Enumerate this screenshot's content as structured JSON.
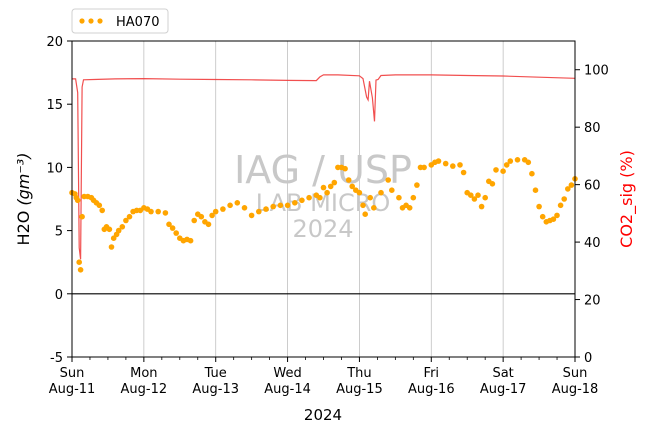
{
  "chart_data": {
    "type": "line",
    "ylabel_left": "H2O",
    "ylabel_left_unit": "(gm⁻³)",
    "ylabel_right": "CO2_sig (%)",
    "xlabel": "2024",
    "ylim_left": [
      -5,
      20
    ],
    "ylim_right": [
      0,
      110
    ],
    "yticks_left": [
      -5,
      0,
      5,
      10,
      15,
      20
    ],
    "yticks_right": [
      0,
      20,
      40,
      60,
      80,
      100
    ],
    "x_range_days": [
      0,
      7
    ],
    "x_ticks": [
      {
        "day": 0,
        "l1": "Sun",
        "l2": "Aug-11"
      },
      {
        "day": 1,
        "l1": "Mon",
        "l2": "Aug-12"
      },
      {
        "day": 2,
        "l1": "Tue",
        "l2": "Aug-13"
      },
      {
        "day": 3,
        "l1": "Wed",
        "l2": "Aug-14"
      },
      {
        "day": 4,
        "l1": "Thu",
        "l2": "Aug-15"
      },
      {
        "day": 5,
        "l1": "Fri",
        "l2": "Aug-16"
      },
      {
        "day": 6,
        "l1": "Sat",
        "l2": "Aug-17"
      },
      {
        "day": 7,
        "l1": "Sun",
        "l2": "Aug-18"
      }
    ],
    "grid_x": true,
    "zero_line": true,
    "legend": {
      "label": "HA070",
      "placement": "top-left-outside"
    },
    "watermark": [
      "IAG / USP",
      "LAB MICRO",
      "2024"
    ],
    "colors": {
      "h2o": "#ffa500",
      "co2": "#f03c3c",
      "grid": "#c0c0c0",
      "watermark": "#c8c8c8",
      "right_label": "#ff0000"
    },
    "series": [
      {
        "name": "HA070",
        "axis": "left",
        "style": "points",
        "points": [
          [
            0.0,
            8.0
          ],
          [
            0.04,
            7.9
          ],
          [
            0.06,
            7.6
          ],
          [
            0.08,
            7.4
          ],
          [
            0.1,
            2.5
          ],
          [
            0.12,
            1.9
          ],
          [
            0.14,
            6.1
          ],
          [
            0.17,
            7.7
          ],
          [
            0.22,
            7.7
          ],
          [
            0.27,
            7.6
          ],
          [
            0.3,
            7.4
          ],
          [
            0.34,
            7.2
          ],
          [
            0.38,
            7.0
          ],
          [
            0.42,
            6.6
          ],
          [
            0.45,
            5.1
          ],
          [
            0.48,
            5.3
          ],
          [
            0.52,
            5.1
          ],
          [
            0.55,
            3.7
          ],
          [
            0.58,
            4.4
          ],
          [
            0.62,
            4.7
          ],
          [
            0.65,
            5.0
          ],
          [
            0.7,
            5.3
          ],
          [
            0.75,
            5.8
          ],
          [
            0.8,
            6.1
          ],
          [
            0.85,
            6.5
          ],
          [
            0.9,
            6.6
          ],
          [
            0.95,
            6.6
          ],
          [
            1.0,
            6.8
          ],
          [
            1.05,
            6.7
          ],
          [
            1.1,
            6.5
          ],
          [
            1.2,
            6.5
          ],
          [
            1.3,
            6.4
          ],
          [
            1.35,
            5.5
          ],
          [
            1.4,
            5.2
          ],
          [
            1.45,
            4.8
          ],
          [
            1.5,
            4.4
          ],
          [
            1.55,
            4.2
          ],
          [
            1.6,
            4.3
          ],
          [
            1.65,
            4.2
          ],
          [
            1.7,
            5.8
          ],
          [
            1.75,
            6.3
          ],
          [
            1.8,
            6.1
          ],
          [
            1.85,
            5.7
          ],
          [
            1.9,
            5.5
          ],
          [
            1.95,
            6.2
          ],
          [
            2.0,
            6.5
          ],
          [
            2.1,
            6.7
          ],
          [
            2.2,
            7.0
          ],
          [
            2.3,
            7.2
          ],
          [
            2.4,
            6.8
          ],
          [
            2.5,
            6.2
          ],
          [
            2.6,
            6.5
          ],
          [
            2.7,
            6.7
          ],
          [
            2.8,
            6.9
          ],
          [
            2.9,
            7.0
          ],
          [
            3.0,
            7.0
          ],
          [
            3.1,
            7.2
          ],
          [
            3.2,
            7.4
          ],
          [
            3.3,
            7.6
          ],
          [
            3.4,
            7.8
          ],
          [
            3.45,
            7.6
          ],
          [
            3.5,
            8.4
          ],
          [
            3.55,
            8.0
          ],
          [
            3.6,
            8.5
          ],
          [
            3.65,
            8.8
          ],
          [
            3.7,
            10.0
          ],
          [
            3.75,
            10.0
          ],
          [
            3.8,
            9.9
          ],
          [
            3.85,
            9.0
          ],
          [
            3.9,
            8.5
          ],
          [
            3.95,
            8.2
          ],
          [
            4.0,
            8.0
          ],
          [
            4.05,
            7.0
          ],
          [
            4.08,
            6.3
          ],
          [
            4.15,
            7.6
          ],
          [
            4.2,
            6.8
          ],
          [
            4.3,
            8.0
          ],
          [
            4.4,
            9.0
          ],
          [
            4.45,
            8.2
          ],
          [
            4.55,
            7.6
          ],
          [
            4.6,
            6.8
          ],
          [
            4.65,
            7.0
          ],
          [
            4.7,
            6.8
          ],
          [
            4.75,
            7.6
          ],
          [
            4.8,
            8.6
          ],
          [
            4.85,
            10.0
          ],
          [
            4.9,
            10.0
          ],
          [
            5.0,
            10.2
          ],
          [
            5.05,
            10.4
          ],
          [
            5.1,
            10.5
          ],
          [
            5.2,
            10.3
          ],
          [
            5.3,
            10.1
          ],
          [
            5.4,
            10.2
          ],
          [
            5.45,
            9.6
          ],
          [
            5.5,
            8.0
          ],
          [
            5.55,
            7.8
          ],
          [
            5.6,
            7.5
          ],
          [
            5.65,
            7.8
          ],
          [
            5.7,
            6.9
          ],
          [
            5.75,
            7.6
          ],
          [
            5.8,
            8.9
          ],
          [
            5.85,
            8.7
          ],
          [
            5.9,
            9.8
          ],
          [
            6.0,
            9.7
          ],
          [
            6.05,
            10.2
          ],
          [
            6.1,
            10.5
          ],
          [
            6.2,
            10.6
          ],
          [
            6.3,
            10.6
          ],
          [
            6.35,
            10.4
          ],
          [
            6.4,
            9.5
          ],
          [
            6.45,
            8.2
          ],
          [
            6.5,
            6.9
          ],
          [
            6.55,
            6.1
          ],
          [
            6.6,
            5.7
          ],
          [
            6.65,
            5.8
          ],
          [
            6.7,
            5.9
          ],
          [
            6.75,
            6.2
          ],
          [
            6.8,
            7.0
          ],
          [
            6.85,
            7.5
          ],
          [
            6.9,
            8.3
          ],
          [
            6.95,
            8.6
          ],
          [
            7.0,
            9.1
          ]
        ]
      },
      {
        "name": "CO2_sig",
        "axis": "right",
        "style": "line",
        "points": [
          [
            0.0,
            96.8
          ],
          [
            0.05,
            96.8
          ],
          [
            0.08,
            92.0
          ],
          [
            0.1,
            38.0
          ],
          [
            0.12,
            34.0
          ],
          [
            0.14,
            94.0
          ],
          [
            0.16,
            96.5
          ],
          [
            0.3,
            96.6
          ],
          [
            0.6,
            96.8
          ],
          [
            1.0,
            96.9
          ],
          [
            1.5,
            96.7
          ],
          [
            2.0,
            96.6
          ],
          [
            2.5,
            96.5
          ],
          [
            3.0,
            96.3
          ],
          [
            3.4,
            96.2
          ],
          [
            3.45,
            97.5
          ],
          [
            3.5,
            98.2
          ],
          [
            3.7,
            98.2
          ],
          [
            4.0,
            97.9
          ],
          [
            4.05,
            96.9
          ],
          [
            4.1,
            90.5
          ],
          [
            4.12,
            89.5
          ],
          [
            4.14,
            96.0
          ],
          [
            4.18,
            90.2
          ],
          [
            4.21,
            82.0
          ],
          [
            4.23,
            96.4
          ],
          [
            4.26,
            96.6
          ],
          [
            4.3,
            98.0
          ],
          [
            4.5,
            98.2
          ],
          [
            5.0,
            98.2
          ],
          [
            5.5,
            98.0
          ],
          [
            6.0,
            97.8
          ],
          [
            6.5,
            97.4
          ],
          [
            7.0,
            97.0
          ]
        ]
      }
    ]
  }
}
